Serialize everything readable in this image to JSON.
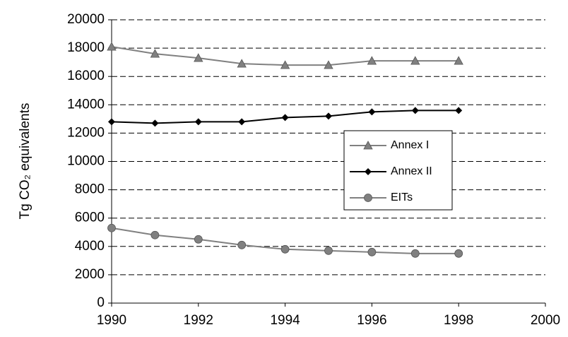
{
  "chart_data": {
    "type": "line",
    "y_label": "Tg CO₂ equivalents",
    "x": [
      1990,
      1991,
      1992,
      1993,
      1994,
      1995,
      1996,
      1997,
      1998
    ],
    "series": [
      {
        "name": "Annex I",
        "color": "#808080",
        "marker": "triangle",
        "values": [
          18100,
          17600,
          17300,
          16900,
          16800,
          16800,
          17100,
          17100,
          17100
        ]
      },
      {
        "name": "Annex II",
        "color": "#000000",
        "marker": "diamond",
        "values": [
          12800,
          12700,
          12800,
          12800,
          13100,
          13200,
          13500,
          13600,
          13600
        ]
      },
      {
        "name": "EITs",
        "color": "#808080",
        "marker": "circle",
        "values": [
          5300,
          4800,
          4500,
          4100,
          3800,
          3700,
          3600,
          3500,
          3500
        ]
      }
    ],
    "xlim": [
      1990,
      2000
    ],
    "xticks": [
      1990,
      1992,
      1994,
      1996,
      1998,
      2000
    ],
    "ylim": [
      0,
      20000
    ],
    "yticks": [
      0,
      2000,
      4000,
      6000,
      8000,
      10000,
      12000,
      14000,
      16000,
      18000,
      20000
    ],
    "grid": true
  }
}
